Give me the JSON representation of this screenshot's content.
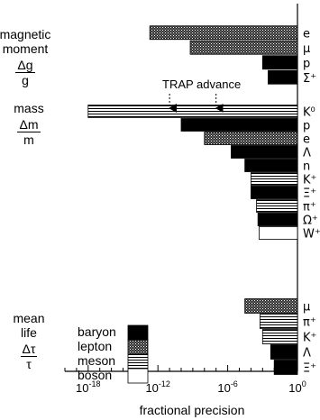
{
  "chart_data": {
    "type": "bar",
    "orientation": "horizontal",
    "x_scale": "log",
    "xlim": [
      1e-20,
      1
    ],
    "x_ticks": [
      {
        "value": 1e-18,
        "base": "10",
        "exp": "-18"
      },
      {
        "value": 1e-12,
        "base": "10",
        "exp": "-12"
      },
      {
        "value": 1e-06,
        "base": "10",
        "exp": "-6"
      },
      {
        "value": 1,
        "base": "10",
        "exp": "0"
      }
    ],
    "xlabel": "fractional precision",
    "annotation": {
      "text": "TRAP advance",
      "arrow_targets": [
        1e-11,
        1e-07
      ]
    },
    "groups": [
      {
        "name": [
          "magnetic",
          "moment"
        ],
        "fraction": {
          "num": "Δg",
          "den": "g"
        },
        "bars": [
          {
            "label": "e",
            "value": 2e-13,
            "type": "lepton"
          },
          {
            "label": "μ",
            "value": 6e-10,
            "type": "lepton"
          },
          {
            "label": "p",
            "value": 0.001,
            "type": "baryon"
          },
          {
            "label": "Σ⁺",
            "value": 0.003,
            "type": "baryon"
          }
        ]
      },
      {
        "name": [
          "mass"
        ],
        "fraction": {
          "num": "Δm",
          "den": "m"
        },
        "bars": [
          {
            "label": "K⁰",
            "value": 1e-18,
            "type": "meson"
          },
          {
            "label": "p",
            "value": 1e-10,
            "type": "baryon"
          },
          {
            "label": "e",
            "value": 1e-08,
            "type": "lepton"
          },
          {
            "label": "Λ",
            "value": 2e-06,
            "type": "baryon"
          },
          {
            "label": "n",
            "value": 3e-05,
            "type": "baryon"
          },
          {
            "label": "K⁺",
            "value": 0.0001,
            "type": "meson"
          },
          {
            "label": "Ξ⁺",
            "value": 0.0001,
            "type": "baryon"
          },
          {
            "label": "π⁺",
            "value": 0.0003,
            "type": "meson"
          },
          {
            "label": "Ω⁺",
            "value": 0.0004,
            "type": "baryon"
          },
          {
            "label": "W⁺",
            "value": 0.0005,
            "type": "boson"
          }
        ]
      },
      {
        "name": [
          "mean",
          "life"
        ],
        "fraction": {
          "num": "Δτ",
          "den": "τ"
        },
        "bars": [
          {
            "label": "μ",
            "value": 3e-05,
            "type": "lepton"
          },
          {
            "label": "π⁺",
            "value": 0.0006,
            "type": "meson"
          },
          {
            "label": "K⁺",
            "value": 0.001,
            "type": "meson"
          },
          {
            "label": "Λ",
            "value": 0.005,
            "type": "baryon"
          },
          {
            "label": "Ξ⁺",
            "value": 0.01,
            "type": "baryon"
          }
        ]
      }
    ],
    "legend": {
      "placement": "bottom-left",
      "entries": [
        {
          "label": "baryon",
          "type": "baryon"
        },
        {
          "label": "lepton",
          "type": "lepton"
        },
        {
          "label": "meson",
          "type": "meson"
        },
        {
          "label": "boson",
          "type": "boson"
        }
      ]
    }
  }
}
